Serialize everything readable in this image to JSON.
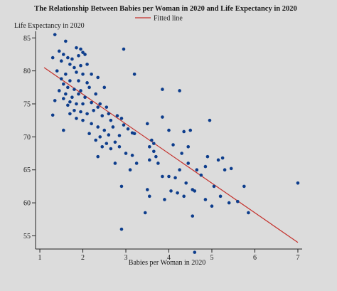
{
  "chart_data": {
    "type": "scatter",
    "title": "The Relationship Between Babies per Woman in 2020 and Life Expectancy in 2020",
    "xlabel": "Babies per Woman in 2020",
    "ylabel": "Life Expectancy in 2020",
    "legend": {
      "label": "Fitted line",
      "position": "top-right"
    },
    "xlim": [
      0.9,
      7.1
    ],
    "ylim": [
      53,
      86
    ],
    "xticks": [
      1,
      2,
      3,
      4,
      5,
      6,
      7
    ],
    "yticks": [
      55,
      60,
      65,
      70,
      75,
      80,
      85
    ],
    "colors": {
      "points": "#0d3d8c",
      "fitted_line": "#c4302b",
      "axis": "#222222"
    },
    "fitted_line": {
      "x": [
        1.1,
        7.0
      ],
      "y": [
        80.5,
        54.0
      ]
    },
    "points": [
      [
        1.35,
        85.5
      ],
      [
        1.6,
        84.5
      ],
      [
        1.85,
        83.5
      ],
      [
        1.95,
        83.3
      ],
      [
        2.0,
        82.8
      ],
      [
        1.45,
        83.0
      ],
      [
        1.55,
        82.5
      ],
      [
        1.65,
        82.0
      ],
      [
        1.75,
        81.8
      ],
      [
        1.9,
        82.3
      ],
      [
        2.05,
        82.5
      ],
      [
        1.3,
        82.0
      ],
      [
        1.5,
        81.5
      ],
      [
        1.7,
        81.0
      ],
      [
        1.8,
        80.5
      ],
      [
        1.95,
        80.8
      ],
      [
        2.1,
        81.0
      ],
      [
        1.4,
        80.0
      ],
      [
        1.6,
        79.5
      ],
      [
        1.85,
        79.8
      ],
      [
        2.0,
        79.5
      ],
      [
        2.2,
        79.5
      ],
      [
        1.5,
        78.8
      ],
      [
        1.7,
        78.5
      ],
      [
        1.9,
        78.5
      ],
      [
        2.1,
        78.2
      ],
      [
        2.35,
        79.0
      ],
      [
        1.55,
        78.0
      ],
      [
        1.65,
        77.5
      ],
      [
        1.8,
        77.2
      ],
      [
        1.95,
        77.0
      ],
      [
        2.15,
        77.5
      ],
      [
        1.45,
        77.0
      ],
      [
        1.6,
        76.5
      ],
      [
        1.75,
        76.0
      ],
      [
        1.9,
        76.5
      ],
      [
        2.05,
        76.0
      ],
      [
        2.3,
        76.5
      ],
      [
        1.55,
        75.8
      ],
      [
        1.7,
        75.3
      ],
      [
        1.85,
        75.0
      ],
      [
        2.0,
        75.0
      ],
      [
        2.2,
        75.2
      ],
      [
        2.4,
        75.0
      ],
      [
        1.35,
        75.5
      ],
      [
        1.65,
        74.8
      ],
      [
        2.5,
        77.5
      ],
      [
        2.35,
        74.5
      ],
      [
        1.8,
        74.0
      ],
      [
        1.95,
        73.8
      ],
      [
        2.1,
        73.5
      ],
      [
        2.25,
        74.0
      ],
      [
        2.45,
        73.2
      ],
      [
        1.7,
        73.5
      ],
      [
        2.0,
        72.5
      ],
      [
        1.85,
        72.8
      ],
      [
        2.2,
        72.0
      ],
      [
        2.55,
        74.5
      ],
      [
        2.6,
        73.5
      ],
      [
        2.8,
        73.2
      ],
      [
        2.9,
        72.8
      ],
      [
        2.65,
        72.5
      ],
      [
        2.35,
        71.5
      ],
      [
        2.5,
        71.0
      ],
      [
        2.7,
        71.5
      ],
      [
        2.95,
        71.8
      ],
      [
        3.05,
        71.2
      ],
      [
        1.55,
        71.0
      ],
      [
        2.15,
        70.5
      ],
      [
        2.4,
        70.0
      ],
      [
        2.6,
        70.3
      ],
      [
        2.85,
        70.2
      ],
      [
        3.15,
        70.6
      ],
      [
        3.2,
        70.5
      ],
      [
        2.3,
        69.5
      ],
      [
        2.55,
        69.0
      ],
      [
        2.75,
        69.2
      ],
      [
        2.45,
        68.5
      ],
      [
        2.65,
        68.2
      ],
      [
        2.85,
        68.5
      ],
      [
        3.0,
        67.5
      ],
      [
        3.15,
        67.2
      ],
      [
        2.35,
        67.0
      ],
      [
        2.75,
        66.0
      ],
      [
        3.1,
        65.0
      ],
      [
        3.25,
        66.0
      ],
      [
        1.3,
        73.3
      ],
      [
        2.95,
        83.3
      ],
      [
        3.2,
        79.5
      ],
      [
        3.85,
        77.2
      ],
      [
        4.25,
        77.0
      ],
      [
        3.85,
        73.0
      ],
      [
        3.5,
        72.0
      ],
      [
        3.6,
        69.5
      ],
      [
        3.65,
        69.0
      ],
      [
        3.55,
        68.5
      ],
      [
        3.65,
        67.8
      ],
      [
        3.7,
        67.0
      ],
      [
        3.55,
        66.5
      ],
      [
        3.75,
        66.0
      ],
      [
        3.85,
        64.0
      ],
      [
        4.0,
        64.0
      ],
      [
        4.1,
        68.8
      ],
      [
        4.3,
        67.5
      ],
      [
        4.45,
        68.5
      ],
      [
        4.35,
        70.8
      ],
      [
        4.5,
        71.0
      ],
      [
        4.95,
        72.5
      ],
      [
        4.45,
        66.0
      ],
      [
        4.65,
        65.0
      ],
      [
        4.75,
        64.2
      ],
      [
        4.85,
        65.5
      ],
      [
        4.25,
        65.0
      ],
      [
        4.15,
        63.8
      ],
      [
        4.4,
        63.0
      ],
      [
        4.55,
        62.0
      ],
      [
        4.2,
        61.5
      ],
      [
        4.35,
        61.0
      ],
      [
        4.05,
        61.8
      ],
      [
        3.9,
        60.5
      ],
      [
        4.6,
        61.8
      ],
      [
        4.85,
        60.5
      ],
      [
        5.15,
        66.5
      ],
      [
        5.25,
        66.8
      ],
      [
        5.3,
        65.0
      ],
      [
        5.45,
        65.2
      ],
      [
        5.05,
        62.5
      ],
      [
        5.2,
        61.0
      ],
      [
        5.4,
        60.0
      ],
      [
        5.6,
        60.2
      ],
      [
        5.75,
        62.5
      ],
      [
        5.85,
        58.5
      ],
      [
        3.5,
        62.0
      ],
      [
        3.55,
        61.0
      ],
      [
        3.45,
        58.5
      ],
      [
        2.9,
        62.5
      ],
      [
        2.9,
        56.0
      ],
      [
        4.55,
        58.0
      ],
      [
        5.0,
        59.5
      ],
      [
        4.6,
        52.5
      ],
      [
        7.0,
        63.0
      ],
      [
        4.0,
        71.0
      ],
      [
        4.9,
        67.0
      ]
    ]
  }
}
